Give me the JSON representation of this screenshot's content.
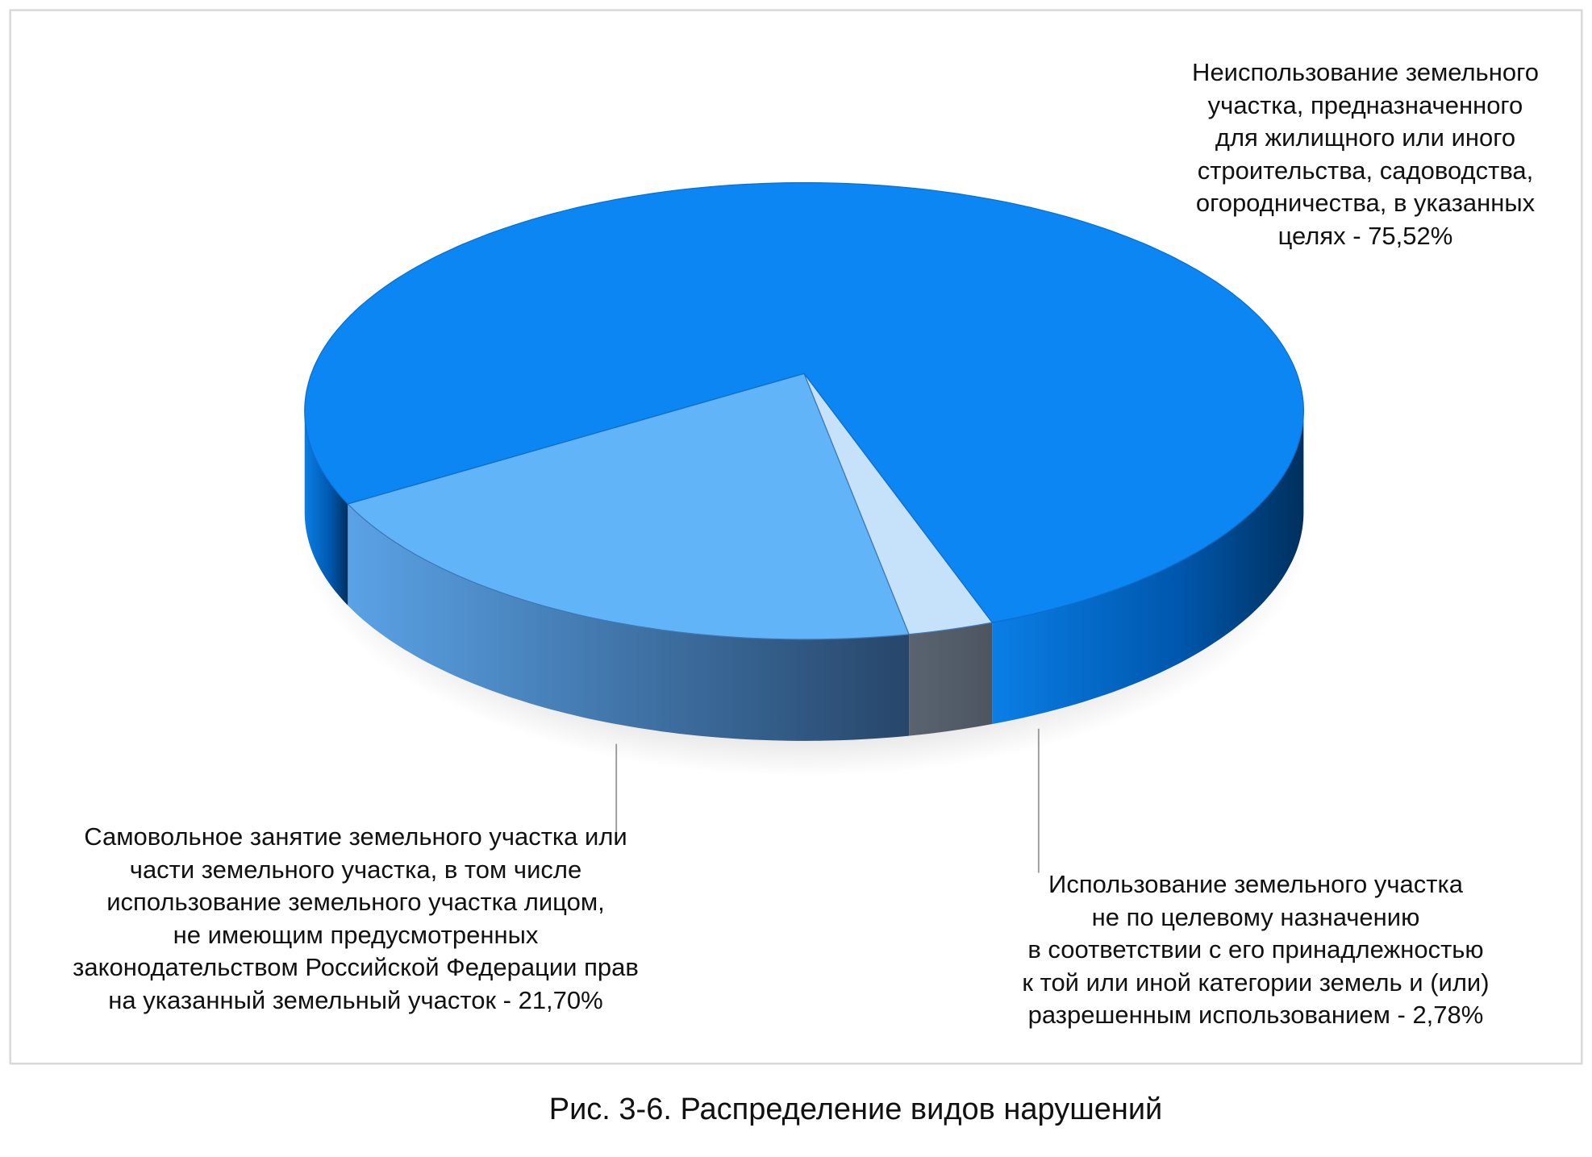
{
  "chart_data": {
    "type": "pie",
    "style": "3d",
    "title": "",
    "caption": "Рис. 3-6. Распределение видов нарушений",
    "slices": [
      {
        "label": "Самовольное занятие земельного участка или части земельного участка, в том числе использование земельного участка лицом, не имеющим предусмотренных законодательством Российской Федерации прав на указанный земельный участок",
        "value": 21.7,
        "color": "#62b4f8",
        "side_color": "#3f77b8"
      },
      {
        "label": "Использование земельного участка не по целевому назначению в соответствии с его принадлежностью к той или иной категории земель и (или) разрешенным использованием",
        "value": 2.78,
        "color": "#c6e1fa",
        "side_color": "#56606c"
      },
      {
        "label": "Неиспользование земельного участка, предназначенного для жилищного или иного строительства, садоводства, огородничества, в указанных целях",
        "value": 75.52,
        "color": "#0b86f2",
        "side_color": "#00468c"
      }
    ],
    "data_labels": {
      "big": [
        "Неиспользование земельного",
        "участка, предназначенного",
        "для жилищного или иного",
        "строительства, садоводства,",
        "огородничества, в указанных",
        "целях - 75,52%"
      ],
      "medium": [
        "Самовольное занятие земельного участка или",
        "части земельного участка, в том числе",
        "использование земельного участка лицом,",
        "не имеющим предусмотренных",
        "законодательством Российской Федерации прав",
        "на указанный земельный участок - 21,70%"
      ],
      "small": [
        "Использование земельного участка",
        "не по целевому назначению",
        "в соответствии с его принадлежностью",
        "к той или иной категории земель и (или)",
        "разрешенным использованием - 2,78%"
      ]
    },
    "legend": "none"
  }
}
